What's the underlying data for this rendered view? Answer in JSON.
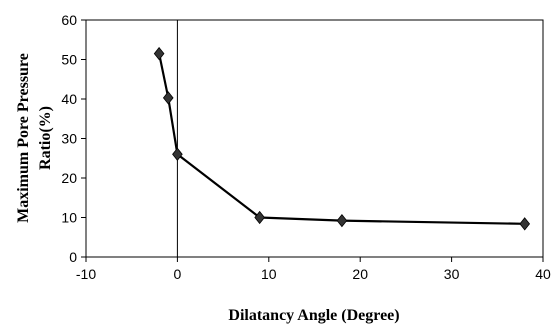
{
  "chart_data": {
    "type": "line",
    "title": "",
    "xlabel": "Dilatancy Angle (Degree)",
    "ylabel_line1": "Maximum Pore Pressure",
    "ylabel_line2": "Ratio(%)",
    "xlim": [
      -10,
      40
    ],
    "ylim": [
      0,
      60
    ],
    "xticks": [
      -10,
      0,
      10,
      20,
      30,
      40
    ],
    "yticks": [
      0,
      10,
      20,
      30,
      40,
      50,
      60
    ],
    "grid": false,
    "legend": "none",
    "series": [
      {
        "x": [
          -2,
          -1,
          0,
          9,
          18,
          38
        ],
        "y": [
          51.5,
          40.3,
          26,
          10,
          9.2,
          8.4
        ],
        "marker": "diamond",
        "color": "#000000"
      }
    ]
  }
}
